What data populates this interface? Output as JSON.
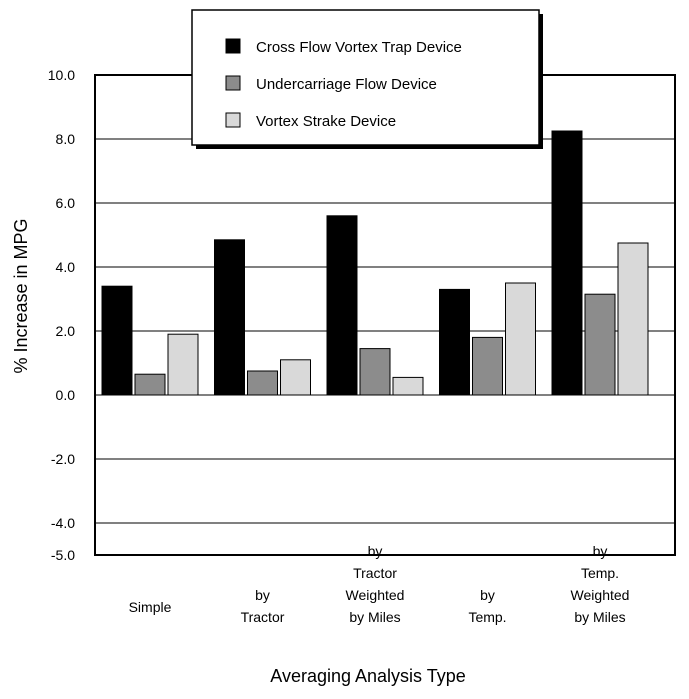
{
  "chart_data": {
    "type": "bar",
    "title": "",
    "xlabel": "Averaging Analysis Type",
    "ylabel": "% Increase in MPG",
    "ylim": [
      -5.0,
      10.0
    ],
    "yticks": [
      10.0,
      8.0,
      6.0,
      4.0,
      2.0,
      0.0,
      -2.0,
      -4.0,
      -5.0
    ],
    "ytick_labels": [
      "10.0",
      "8.0",
      "6.0",
      "4.0",
      "2.0",
      "0.0",
      "-2.0",
      "-4.0",
      "-5.0"
    ],
    "grid_y": true,
    "legend_position": "top-center",
    "categories": [
      [
        "Simple"
      ],
      [
        "by",
        "Tractor"
      ],
      [
        "by",
        "Tractor",
        "Weighted",
        "by Miles"
      ],
      [
        "by",
        "Temp."
      ],
      [
        "by",
        "Temp.",
        "Weighted",
        "by Miles"
      ]
    ],
    "series": [
      {
        "name": "Cross Flow Vortex Trap Device",
        "color": "#000000",
        "values": [
          3.4,
          4.85,
          5.6,
          3.3,
          8.25
        ]
      },
      {
        "name": "Undercarriage Flow  Device",
        "color": "#8c8c8c",
        "values": [
          0.65,
          0.75,
          1.45,
          1.8,
          3.15
        ]
      },
      {
        "name": "Vortex Strake Device",
        "color": "#d9d9d9",
        "values": [
          1.9,
          1.1,
          0.55,
          3.5,
          4.75
        ]
      }
    ]
  }
}
